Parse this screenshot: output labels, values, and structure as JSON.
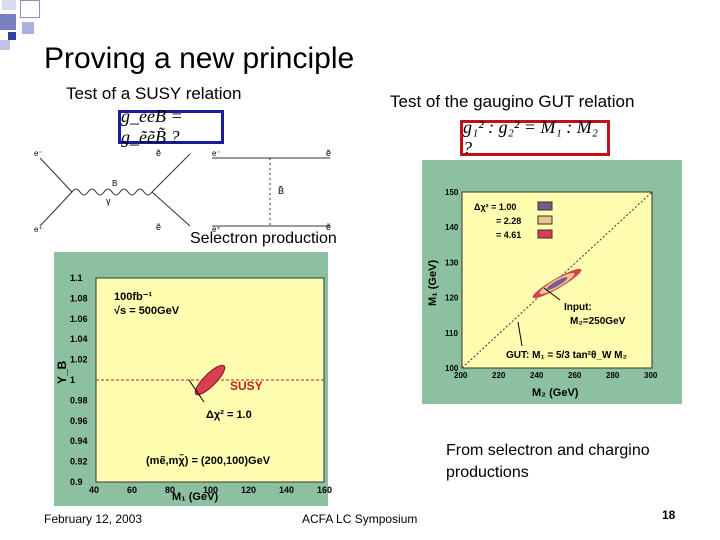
{
  "slide": {
    "title": "Proving a new principle",
    "left_heading": "Test of a SUSY relation",
    "right_heading": "Test of  the gaugino GUT relation",
    "susy_formula": "g_eeB = g_ẽẽB̃ ?",
    "gut_formula": "g₁² : g₂² = M₁ : M₂ ?",
    "selectron_label": "Selectron production",
    "note_line1": "From selectron and chargino",
    "note_line2": "productions",
    "footer_date": "February 12, 2003",
    "footer_center": "ACFA LC Symposium",
    "page_number": "18"
  },
  "feynman": {
    "labels": [
      "e⁻",
      "e⁺",
      "ẽ",
      "ẽ",
      "γ",
      "B",
      "e⁻",
      "e⁺",
      "ẽ",
      "B̃",
      "ẽ"
    ]
  },
  "left_chart": {
    "annotations": [
      "100fb⁻¹",
      "√s = 500GeV",
      "SUSY",
      "Δχ² = 1.0",
      "(mẽ,mχ̃) = (200,100)GeV"
    ],
    "ylabel": "Y_B",
    "xlabel": "M₁ (GeV)"
  },
  "right_chart": {
    "legend_title": "Δχ² = 1.00",
    "legend": [
      "Δχ² = 1.00",
      "= 2.28",
      "= 4.61"
    ],
    "legend_colors": [
      "#7a5a8a",
      "#e8c890",
      "#d84050"
    ],
    "annotations": [
      "Input:",
      "M₂=250GeV",
      "GUT: M₁ = 5/3 tan²θ_W M₂"
    ],
    "ylabel": "M₁ (GeV)",
    "xlabel": "M₂ (GeV)"
  },
  "chart_data": [
    {
      "type": "scatter",
      "title": "",
      "xlabel": "M₁ (GeV)",
      "ylabel": "Y_B",
      "xlim": [
        40,
        160
      ],
      "ylim": [
        0.9,
        1.1
      ],
      "x_ticks": [
        40,
        60,
        80,
        100,
        120,
        140,
        160
      ],
      "y_ticks": [
        0.9,
        0.92,
        0.94,
        0.96,
        0.98,
        1,
        1.02,
        1.04,
        1.06,
        1.08,
        1.1
      ],
      "reference_line_y": 1.0,
      "contour_center": [
        100,
        1.0
      ],
      "contour_label": "Δχ² = 1.0",
      "line_label": "SUSY"
    },
    {
      "type": "scatter",
      "title": "",
      "xlabel": "M₂ (GeV)",
      "ylabel": "M₁ (GeV)",
      "xlim": [
        200,
        300
      ],
      "ylim": [
        100,
        150
      ],
      "x_ticks": [
        200,
        220,
        240,
        260,
        280,
        300
      ],
      "y_ticks": [
        100,
        110,
        120,
        130,
        140,
        150
      ],
      "input_point": [
        250,
        124
      ],
      "gut_line": [
        [
          200,
          100
        ],
        [
          300,
          150
        ]
      ],
      "legend": [
        "Δχ² = 1.00",
        "= 2.28",
        "= 4.61"
      ]
    }
  ]
}
